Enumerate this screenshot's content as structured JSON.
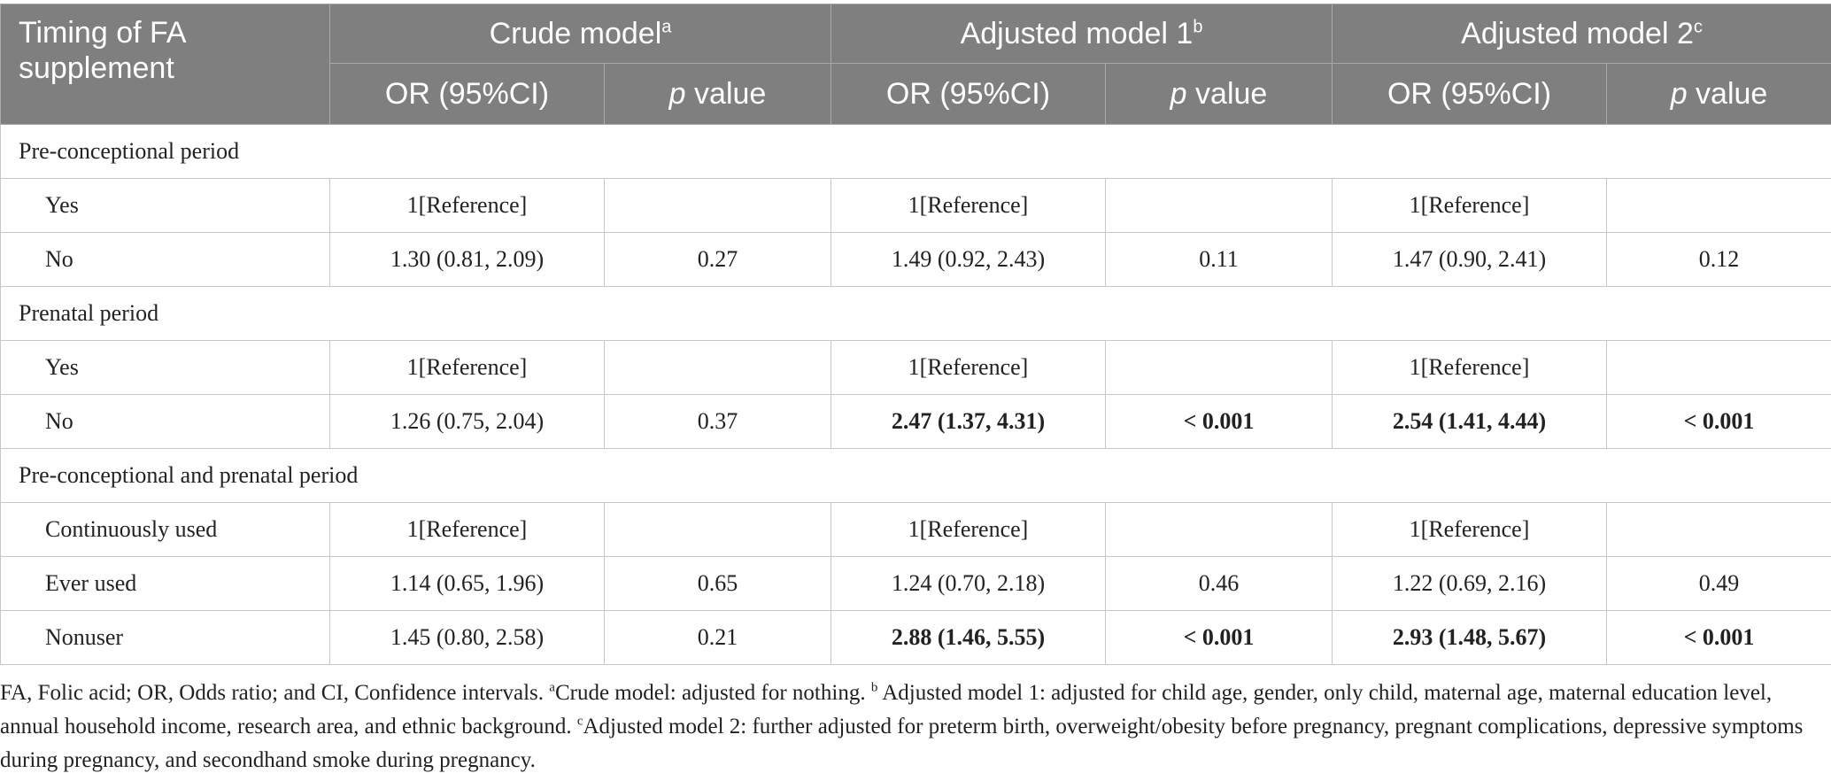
{
  "header": {
    "col0": "Timing of FA supplement",
    "groups": [
      {
        "label": "Crude model",
        "sup": "a"
      },
      {
        "label": "Adjusted model 1",
        "sup": "b"
      },
      {
        "label": "Adjusted model 2",
        "sup": "c"
      }
    ],
    "or_label": "OR (95%CI)",
    "p_italic": "p",
    "p_rest": " value"
  },
  "sections": [
    {
      "title": "Pre-conceptional period",
      "rows": [
        {
          "label": "Yes",
          "cells": [
            "1[Reference]",
            "",
            "1[Reference]",
            "",
            "1[Reference]",
            ""
          ],
          "bold": [
            false,
            false,
            false,
            false,
            false,
            false
          ]
        },
        {
          "label": "No",
          "cells": [
            "1.30 (0.81, 2.09)",
            "0.27",
            "1.49 (0.92, 2.43)",
            "0.11",
            "1.47 (0.90, 2.41)",
            "0.12"
          ],
          "bold": [
            false,
            false,
            false,
            false,
            false,
            false
          ]
        }
      ]
    },
    {
      "title": "Prenatal period",
      "rows": [
        {
          "label": "Yes",
          "cells": [
            "1[Reference]",
            "",
            "1[Reference]",
            "",
            "1[Reference]",
            ""
          ],
          "bold": [
            false,
            false,
            false,
            false,
            false,
            false
          ]
        },
        {
          "label": "No",
          "cells": [
            "1.26 (0.75, 2.04)",
            "0.37",
            "2.47 (1.37, 4.31)",
            "< 0.001",
            "2.54 (1.41, 4.44)",
            "< 0.001"
          ],
          "bold": [
            false,
            false,
            true,
            true,
            true,
            true
          ]
        }
      ]
    },
    {
      "title": "Pre-conceptional and prenatal period",
      "rows": [
        {
          "label": "Continuously used",
          "cells": [
            "1[Reference]",
            "",
            "1[Reference]",
            "",
            "1[Reference]",
            ""
          ],
          "bold": [
            false,
            false,
            false,
            false,
            false,
            false
          ]
        },
        {
          "label": "Ever used",
          "cells": [
            "1.14 (0.65, 1.96)",
            "0.65",
            "1.24 (0.70, 2.18)",
            "0.46",
            "1.22 (0.69, 2.16)",
            "0.49"
          ],
          "bold": [
            false,
            false,
            false,
            false,
            false,
            false
          ]
        },
        {
          "label": "Nonuser",
          "cells": [
            "1.45 (0.80, 2.58)",
            "0.21",
            "2.88 (1.46, 5.55)",
            "< 0.001",
            "2.93 (1.48, 5.67)",
            "< 0.001"
          ],
          "bold": [
            false,
            false,
            true,
            true,
            true,
            true
          ]
        }
      ]
    }
  ],
  "footnote": {
    "intro": "FA, Folic acid; OR, Odds ratio; and CI, Confidence intervals. ",
    "notes": [
      {
        "sup": "a",
        "text": "Crude model: adjusted for nothing. "
      },
      {
        "sup": "b",
        "text": " Adjusted model 1: adjusted for child age, gender, only child, maternal age, maternal education level, annual household income, research area, and ethnic background. "
      },
      {
        "sup": "c",
        "text": "Adjusted model 2: further adjusted for preterm birth, overweight/obesity before pregnancy, pregnant complications, depressive symptoms during pregnancy, and secondhand smoke during pregnancy."
      }
    ]
  }
}
